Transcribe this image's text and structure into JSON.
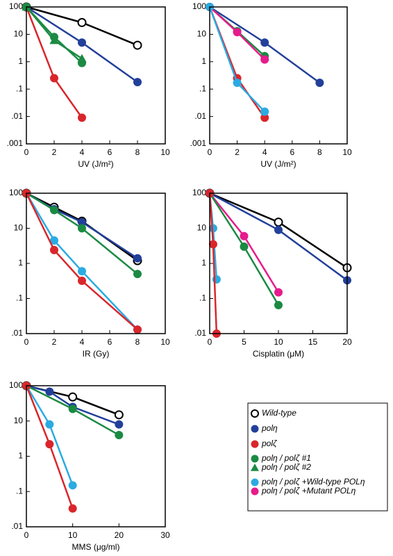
{
  "chart_data": [
    {
      "type": "line",
      "log_y": true,
      "xlabel": "UV (J/m²)",
      "xlim": [
        0,
        10
      ],
      "xticks": [
        0,
        2,
        4,
        6,
        8,
        10
      ],
      "ylim": [
        0.001,
        100
      ],
      "yticks": [
        100,
        10,
        1,
        {
          "value": 0.1,
          "label": ".1"
        },
        {
          "value": 0.01,
          "label": ".01"
        },
        {
          "value": 0.001,
          "label": ".001"
        }
      ],
      "series": [
        {
          "name": "Wild-type",
          "color": "#000000",
          "marker": "open-circle",
          "x": [
            0,
            4,
            8
          ],
          "values": [
            100,
            27,
            4
          ]
        },
        {
          "name": "polη",
          "color": "#22409a",
          "marker": "circle",
          "x": [
            0,
            4,
            8
          ],
          "values": [
            100,
            5,
            0.18
          ]
        },
        {
          "name": "polζ",
          "color": "#d9262b",
          "marker": "circle",
          "x": [
            0,
            2,
            4
          ],
          "values": [
            100,
            0.25,
            0.009
          ]
        },
        {
          "name": "polη / polζ #1",
          "color": "#1b8a43",
          "marker": "circle",
          "x": [
            0,
            2,
            4
          ],
          "values": [
            100,
            8,
            0.9
          ]
        },
        {
          "name": "polη / polζ #2",
          "color": "#1b8a43",
          "marker": "triangle",
          "x": [
            0,
            2,
            4
          ],
          "values": [
            100,
            6,
            1.3
          ]
        }
      ]
    },
    {
      "type": "line",
      "log_y": true,
      "xlabel": "UV (J/m²)",
      "xlim": [
        0,
        10
      ],
      "xticks": [
        0,
        2,
        4,
        6,
        8,
        10
      ],
      "ylim": [
        0.001,
        100
      ],
      "yticks": [
        100,
        10,
        1,
        {
          "value": 0.1,
          "label": ".1"
        },
        {
          "value": 0.01,
          "label": ".01"
        },
        {
          "value": 0.001,
          "label": ".001"
        }
      ],
      "series": [
        {
          "name": "polη",
          "color": "#22409a",
          "marker": "circle",
          "x": [
            0,
            4,
            8
          ],
          "values": [
            100,
            5,
            0.17
          ]
        },
        {
          "name": "polζ",
          "color": "#d9262b",
          "marker": "circle",
          "x": [
            0,
            2,
            4
          ],
          "values": [
            100,
            0.25,
            0.009
          ]
        },
        {
          "name": "polη / polζ #1",
          "color": "#1b8a43",
          "marker": "circle",
          "x": [
            0,
            2,
            4
          ],
          "values": [
            100,
            13,
            1.6
          ]
        },
        {
          "name": "polη / polζ +Mutant POLη",
          "color": "#e61b8c",
          "marker": "circle",
          "x": [
            0,
            2,
            4
          ],
          "values": [
            100,
            12,
            1.2
          ]
        },
        {
          "name": "polη / polζ +Wild-type POLη",
          "color": "#2aabe2",
          "marker": "circle",
          "x": [
            0,
            2,
            4
          ],
          "values": [
            100,
            0.17,
            0.015
          ]
        }
      ]
    },
    {
      "type": "line",
      "log_y": true,
      "xlabel": "IR (Gy)",
      "xlim": [
        0,
        10
      ],
      "xticks": [
        0,
        2,
        4,
        6,
        8,
        10
      ],
      "ylim": [
        0.01,
        100
      ],
      "yticks": [
        100,
        10,
        1,
        {
          "value": 0.1,
          "label": ".1"
        },
        {
          "value": 0.01,
          "label": ".01"
        }
      ],
      "series": [
        {
          "name": "Wild-type",
          "color": "#000000",
          "marker": "open-circle",
          "x": [
            0,
            2,
            4,
            8
          ],
          "values": [
            100,
            40,
            16,
            1.2
          ]
        },
        {
          "name": "polη",
          "color": "#22409a",
          "marker": "circle",
          "x": [
            0,
            2,
            4,
            8
          ],
          "values": [
            100,
            35,
            15,
            1.4
          ]
        },
        {
          "name": "polη / polζ #1",
          "color": "#1b8a43",
          "marker": "circle",
          "x": [
            0,
            2,
            4,
            8
          ],
          "values": [
            100,
            33,
            10,
            0.5
          ]
        },
        {
          "name": "polη / polζ +Wild-type POLη",
          "color": "#2aabe2",
          "marker": "circle",
          "x": [
            0,
            2,
            4,
            8
          ],
          "values": [
            100,
            4.5,
            0.6,
            0.013
          ]
        },
        {
          "name": "polζ",
          "color": "#d9262b",
          "marker": "circle",
          "x": [
            0,
            2,
            4,
            8
          ],
          "values": [
            100,
            2.4,
            0.32,
            0.013
          ]
        }
      ]
    },
    {
      "type": "line",
      "log_y": true,
      "xlabel": "Cisplatin (μM)",
      "xlim": [
        0,
        20
      ],
      "xticks": [
        0,
        5,
        10,
        15,
        20
      ],
      "ylim": [
        0.01,
        100
      ],
      "yticks": [
        100,
        10,
        1,
        {
          "value": 0.1,
          "label": ".1"
        },
        {
          "value": 0.01,
          "label": ".01"
        }
      ],
      "series": [
        {
          "name": "Wild-type",
          "color": "#000000",
          "marker": "open-circle",
          "x": [
            0,
            10,
            20
          ],
          "values": [
            100,
            15,
            0.75
          ]
        },
        {
          "name": "polη",
          "color": "#22409a",
          "marker": "circle",
          "x": [
            0,
            10,
            20
          ],
          "values": [
            100,
            9,
            0.33
          ]
        },
        {
          "name": "polη / polζ +Mutant POLη",
          "color": "#e61b8c",
          "marker": "circle",
          "x": [
            0,
            5,
            10
          ],
          "values": [
            100,
            6,
            0.15
          ]
        },
        {
          "name": "polη / polζ #1",
          "color": "#1b8a43",
          "marker": "circle",
          "x": [
            0,
            5,
            10
          ],
          "values": [
            100,
            3,
            0.065
          ]
        },
        {
          "name": "polη / polζ +Wild-type POLη",
          "color": "#2aabe2",
          "marker": "circle",
          "x": [
            0,
            0.5,
            1
          ],
          "values": [
            100,
            10,
            0.35
          ]
        },
        {
          "name": "polζ",
          "color": "#d9262b",
          "marker": "circle",
          "x": [
            0,
            0.5,
            1
          ],
          "values": [
            100,
            3.5,
            0.01
          ]
        }
      ]
    },
    {
      "type": "line",
      "log_y": true,
      "xlabel": "MMS (μg/ml)",
      "xlim": [
        0,
        30
      ],
      "xticks": [
        0,
        10,
        20,
        30
      ],
      "ylim": [
        0.01,
        100
      ],
      "yticks": [
        100,
        10,
        1,
        {
          "value": 0.1,
          "label": ".1"
        },
        {
          "value": 0.01,
          "label": ".01"
        }
      ],
      "series": [
        {
          "name": "Wild-type",
          "color": "#000000",
          "marker": "open-circle",
          "x": [
            0,
            10,
            20
          ],
          "values": [
            100,
            48,
            15
          ]
        },
        {
          "name": "polη",
          "color": "#22409a",
          "marker": "circle",
          "x": [
            0,
            5,
            10,
            20
          ],
          "values": [
            100,
            68,
            25,
            8
          ]
        },
        {
          "name": "polη / polζ #1",
          "color": "#1b8a43",
          "marker": "circle",
          "x": [
            0,
            10,
            20
          ],
          "values": [
            100,
            22,
            4
          ]
        },
        {
          "name": "polη / polζ +Wild-type POLη",
          "color": "#2aabe2",
          "marker": "circle",
          "x": [
            0,
            5,
            10
          ],
          "values": [
            100,
            8,
            0.15
          ]
        },
        {
          "name": "polζ",
          "color": "#d9262b",
          "marker": "circle",
          "x": [
            0,
            5,
            10
          ],
          "values": [
            100,
            2.2,
            0.033
          ]
        }
      ]
    }
  ],
  "legend": [
    {
      "name": "Wild-type",
      "color": "#000000",
      "marker": "open-circle"
    },
    {
      "name": "polη",
      "color": "#22409a",
      "marker": "circle"
    },
    {
      "name": "polζ",
      "color": "#d9262b",
      "marker": "circle"
    },
    {
      "name": "polη / polζ #1",
      "color": "#1b8a43",
      "marker": "circle"
    },
    {
      "name": "polη / polζ #2",
      "color": "#1b8a43",
      "marker": "triangle"
    },
    {
      "name": "polη / polζ +Wild-type POLη",
      "color": "#2aabe2",
      "marker": "circle"
    },
    {
      "name": "polη / polζ +Mutant POLη",
      "color": "#e61b8c",
      "marker": "circle"
    }
  ]
}
